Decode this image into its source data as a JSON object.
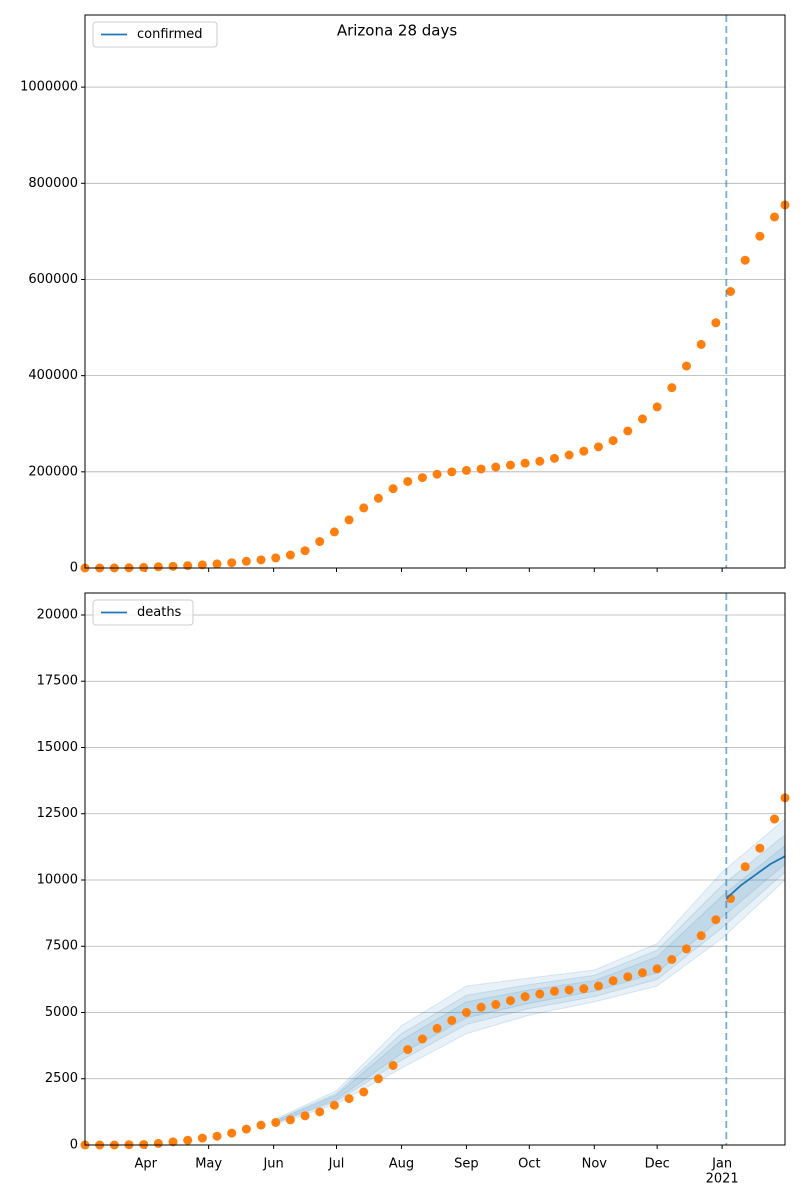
{
  "chart_data": [
    {
      "type": "scatter",
      "title": "Arizona 28 days",
      "legend": {
        "name": "confirmed",
        "color": "#1f77b4",
        "loc": "upper left"
      },
      "x": [
        "2020-03-03",
        "2020-03-10",
        "2020-03-17",
        "2020-03-24",
        "2020-03-31",
        "2020-04-07",
        "2020-04-14",
        "2020-04-21",
        "2020-04-28",
        "2020-05-05",
        "2020-05-12",
        "2020-05-19",
        "2020-05-26",
        "2020-06-02",
        "2020-06-09",
        "2020-06-16",
        "2020-06-23",
        "2020-06-30",
        "2020-07-07",
        "2020-07-14",
        "2020-07-21",
        "2020-07-28",
        "2020-08-04",
        "2020-08-11",
        "2020-08-18",
        "2020-08-25",
        "2020-09-01",
        "2020-09-08",
        "2020-09-15",
        "2020-09-22",
        "2020-09-29",
        "2020-10-06",
        "2020-10-13",
        "2020-10-20",
        "2020-10-27",
        "2020-11-03",
        "2020-11-10",
        "2020-11-17",
        "2020-11-24",
        "2020-12-01",
        "2020-12-08",
        "2020-12-15",
        "2020-12-22",
        "2020-12-29",
        "2021-01-05",
        "2021-01-12",
        "2021-01-19",
        "2021-01-26",
        "2021-01-31"
      ],
      "values": [
        0,
        0,
        200,
        400,
        1200,
        2500,
        3500,
        5000,
        6500,
        8500,
        11000,
        14000,
        17000,
        21000,
        27000,
        36000,
        55000,
        75000,
        100000,
        125000,
        145000,
        165000,
        180000,
        188000,
        195000,
        200000,
        203000,
        206000,
        210000,
        214000,
        218000,
        222000,
        228000,
        235000,
        243000,
        252000,
        265000,
        285000,
        310000,
        335000,
        375000,
        420000,
        465000,
        510000,
        575000,
        640000,
        690000,
        730000,
        755000
      ],
      "marker_color": "#ff7f0e",
      "forecast_start": "2021-01-03",
      "forecast_line_color": "#1f77b4",
      "xlim": [
        "2020-03-03",
        "2021-01-31"
      ],
      "ylim": [
        0,
        1150000
      ],
      "yticks": [
        0,
        200000,
        400000,
        600000,
        800000,
        1000000
      ],
      "grid": true
    },
    {
      "type": "scatter",
      "legend": {
        "name": "deaths",
        "color": "#1f77b4",
        "loc": "upper left"
      },
      "x": [
        "2020-03-03",
        "2020-03-10",
        "2020-03-17",
        "2020-03-24",
        "2020-03-31",
        "2020-04-07",
        "2020-04-14",
        "2020-04-21",
        "2020-04-28",
        "2020-05-05",
        "2020-05-12",
        "2020-05-19",
        "2020-05-26",
        "2020-06-02",
        "2020-06-09",
        "2020-06-16",
        "2020-06-23",
        "2020-06-30",
        "2020-07-07",
        "2020-07-14",
        "2020-07-21",
        "2020-07-28",
        "2020-08-04",
        "2020-08-11",
        "2020-08-18",
        "2020-08-25",
        "2020-09-01",
        "2020-09-08",
        "2020-09-15",
        "2020-09-22",
        "2020-09-29",
        "2020-10-06",
        "2020-10-13",
        "2020-10-20",
        "2020-10-27",
        "2020-11-03",
        "2020-11-10",
        "2020-11-17",
        "2020-11-24",
        "2020-12-01",
        "2020-12-08",
        "2020-12-15",
        "2020-12-22",
        "2020-12-29",
        "2021-01-05",
        "2021-01-12",
        "2021-01-19",
        "2021-01-26",
        "2021-01-31"
      ],
      "values": [
        0,
        0,
        0,
        10,
        20,
        60,
        120,
        180,
        260,
        330,
        450,
        600,
        750,
        850,
        950,
        1100,
        1250,
        1500,
        1750,
        2000,
        2500,
        3000,
        3600,
        4000,
        4400,
        4700,
        5000,
        5200,
        5300,
        5450,
        5600,
        5700,
        5800,
        5850,
        5900,
        6000,
        6200,
        6350,
        6500,
        6650,
        7000,
        7400,
        7900,
        8500,
        9300,
        10500,
        11200,
        12300,
        13100
      ],
      "marker_color": "#ff7f0e",
      "forecast": {
        "x": [
          "2021-01-03",
          "2021-01-10",
          "2021-01-17",
          "2021-01-24",
          "2021-01-31"
        ],
        "values": [
          9300,
          9800,
          10200,
          10600,
          10900
        ],
        "color": "#1f77b4"
      },
      "bands": {
        "x": [
          "2020-06-01",
          "2020-07-01",
          "2020-08-01",
          "2020-09-01",
          "2020-10-01",
          "2020-11-01",
          "2020-12-01",
          "2021-01-01",
          "2021-01-31"
        ],
        "color": "#1f77b4",
        "levels": [
          {
            "lower": [
              750,
              1550,
              2900,
              4200,
              4900,
              5400,
              6000,
              7800,
              10000
            ],
            "upper": [
              950,
              2050,
              4500,
              6000,
              6300,
              6600,
              7600,
              10300,
              12300
            ]
          },
          {
            "lower": [
              800,
              1650,
              3200,
              4550,
              5150,
              5600,
              6250,
              8200,
              10300
            ],
            "upper": [
              900,
              1950,
              4200,
              5650,
              6050,
              6400,
              7350,
              9800,
              11700
            ]
          },
          {
            "lower": [
              820,
              1720,
              3450,
              4800,
              5350,
              5800,
              6500,
              8600,
              10600
            ],
            "upper": [
              880,
              1880,
              3950,
              5400,
              5850,
              6200,
              7100,
              9400,
              11300
            ]
          }
        ]
      },
      "forecast_start": "2021-01-03",
      "forecast_line_color": "#1f77b4",
      "xlim": [
        "2020-03-03",
        "2021-01-31"
      ],
      "xticks": [
        {
          "value": "2020-04-01",
          "label": "Apr"
        },
        {
          "value": "2020-05-01",
          "label": "May"
        },
        {
          "value": "2020-06-01",
          "label": "Jun"
        },
        {
          "value": "2020-07-01",
          "label": "Jul"
        },
        {
          "value": "2020-08-01",
          "label": "Aug"
        },
        {
          "value": "2020-09-01",
          "label": "Sep"
        },
        {
          "value": "2020-10-01",
          "label": "Oct"
        },
        {
          "value": "2020-11-01",
          "label": "Nov"
        },
        {
          "value": "2020-12-01",
          "label": "Dec"
        },
        {
          "value": "2021-01-01",
          "label": "Jan",
          "sublabel": "2021"
        }
      ],
      "ylim": [
        0,
        20830
      ],
      "yticks": [
        0,
        2500,
        5000,
        7500,
        10000,
        12500,
        15000,
        17500,
        20000
      ],
      "grid": true
    }
  ]
}
